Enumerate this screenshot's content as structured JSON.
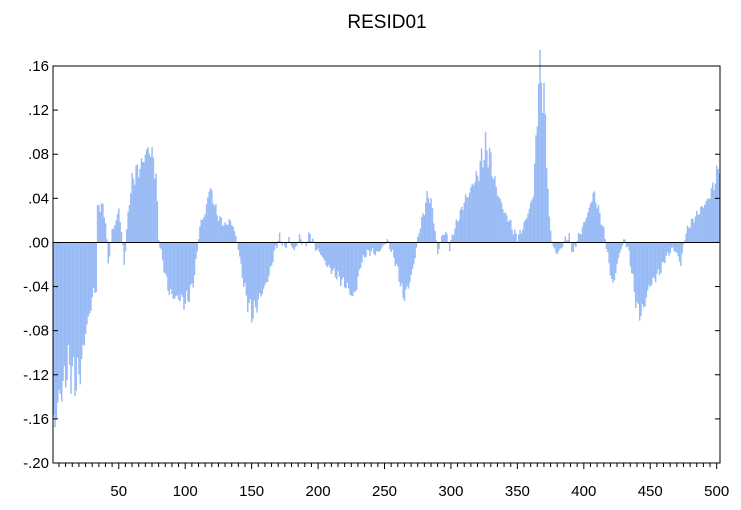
{
  "chart_data": {
    "type": "bar",
    "title": "RESID01",
    "xlabel": "",
    "ylabel": "",
    "xlim": [
      1,
      502
    ],
    "ylim": [
      -0.2,
      0.16
    ],
    "x_ticks": [
      50,
      100,
      150,
      200,
      250,
      300,
      350,
      400,
      450,
      500
    ],
    "y_ticks": [
      ".16",
      ".12",
      ".08",
      ".04",
      ".00",
      "-.04",
      "-.08",
      "-.12",
      "-.16",
      "-.20"
    ],
    "y_tick_values": [
      0.16,
      0.12,
      0.08,
      0.04,
      0.0,
      -0.04,
      -0.08,
      -0.12,
      -0.16,
      -0.2
    ],
    "grid": false,
    "bar_color": "#99BBF5",
    "zero_line_color": "#000000",
    "anchors": [
      [
        1,
        -0.165
      ],
      [
        3,
        -0.155
      ],
      [
        5,
        -0.14
      ],
      [
        8,
        -0.13
      ],
      [
        10,
        -0.12
      ],
      [
        12,
        -0.11
      ],
      [
        15,
        -0.12
      ],
      [
        18,
        -0.125
      ],
      [
        20,
        -0.12
      ],
      [
        22,
        -0.11
      ],
      [
        25,
        -0.08
      ],
      [
        28,
        -0.065
      ],
      [
        30,
        -0.05
      ],
      [
        33,
        -0.04
      ],
      [
        34,
        0.03
      ],
      [
        37,
        0.035
      ],
      [
        40,
        0.02
      ],
      [
        42,
        -0.02
      ],
      [
        45,
        0.01
      ],
      [
        48,
        0.02
      ],
      [
        50,
        0.03
      ],
      [
        52,
        0.01
      ],
      [
        54,
        -0.02
      ],
      [
        56,
        0.01
      ],
      [
        58,
        0.04
      ],
      [
        61,
        0.06
      ],
      [
        64,
        0.065
      ],
      [
        67,
        0.07
      ],
      [
        70,
        0.08
      ],
      [
        73,
        0.085
      ],
      [
        76,
        0.075
      ],
      [
        78,
        0.06
      ],
      [
        80,
        0.005
      ],
      [
        82,
        -0.01
      ],
      [
        85,
        -0.03
      ],
      [
        88,
        -0.045
      ],
      [
        92,
        -0.05
      ],
      [
        96,
        -0.05
      ],
      [
        100,
        -0.055
      ],
      [
        104,
        -0.045
      ],
      [
        107,
        -0.03
      ],
      [
        110,
        0.005
      ],
      [
        112,
        0.02
      ],
      [
        115,
        0.025
      ],
      [
        118,
        0.05
      ],
      [
        121,
        0.04
      ],
      [
        124,
        0.025
      ],
      [
        127,
        0.02
      ],
      [
        130,
        0.015
      ],
      [
        133,
        0.02
      ],
      [
        136,
        0.015
      ],
      [
        140,
        -0.005
      ],
      [
        143,
        -0.03
      ],
      [
        146,
        -0.05
      ],
      [
        150,
        -0.065
      ],
      [
        153,
        -0.06
      ],
      [
        156,
        -0.05
      ],
      [
        160,
        -0.04
      ],
      [
        163,
        -0.03
      ],
      [
        165,
        -0.02
      ],
      [
        168,
        -0.005
      ],
      [
        171,
        0.005
      ],
      [
        175,
        -0.005
      ],
      [
        178,
        0.003
      ],
      [
        182,
        -0.008
      ],
      [
        186,
        0.005
      ],
      [
        190,
        -0.003
      ],
      [
        194,
        0.008
      ],
      [
        198,
        -0.005
      ],
      [
        202,
        -0.01
      ],
      [
        206,
        -0.02
      ],
      [
        210,
        -0.025
      ],
      [
        214,
        -0.03
      ],
      [
        218,
        -0.035
      ],
      [
        222,
        -0.04
      ],
      [
        226,
        -0.05
      ],
      [
        229,
        -0.04
      ],
      [
        232,
        -0.02
      ],
      [
        236,
        -0.01
      ],
      [
        240,
        -0.008
      ],
      [
        244,
        -0.01
      ],
      [
        248,
        -0.005
      ],
      [
        252,
        0.002
      ],
      [
        256,
        -0.01
      ],
      [
        260,
        -0.025
      ],
      [
        264,
        -0.05
      ],
      [
        268,
        -0.04
      ],
      [
        272,
        -0.02
      ],
      [
        276,
        0.01
      ],
      [
        280,
        0.03
      ],
      [
        283,
        0.045
      ],
      [
        286,
        0.03
      ],
      [
        290,
        -0.01
      ],
      [
        293,
        0.005
      ],
      [
        296,
        0.01
      ],
      [
        299,
        -0.005
      ],
      [
        302,
        0.01
      ],
      [
        305,
        0.02
      ],
      [
        308,
        0.03
      ],
      [
        311,
        0.04
      ],
      [
        314,
        0.045
      ],
      [
        317,
        0.055
      ],
      [
        320,
        0.06
      ],
      [
        323,
        0.075
      ],
      [
        326,
        0.085
      ],
      [
        329,
        0.08
      ],
      [
        332,
        0.06
      ],
      [
        335,
        0.045
      ],
      [
        338,
        0.035
      ],
      [
        341,
        0.025
      ],
      [
        344,
        0.02
      ],
      [
        347,
        0.01
      ],
      [
        350,
        0.005
      ],
      [
        353,
        0.01
      ],
      [
        356,
        0.02
      ],
      [
        359,
        0.03
      ],
      [
        362,
        0.045
      ],
      [
        364,
        0.09
      ],
      [
        366,
        0.15
      ],
      [
        368,
        0.15
      ],
      [
        370,
        0.13
      ],
      [
        372,
        0.08
      ],
      [
        374,
        0.02
      ],
      [
        377,
        -0.005
      ],
      [
        380,
        -0.01
      ],
      [
        383,
        -0.005
      ],
      [
        386,
        0.003
      ],
      [
        389,
        0.005
      ],
      [
        392,
        -0.01
      ],
      [
        395,
        0.003
      ],
      [
        398,
        0.01
      ],
      [
        401,
        0.02
      ],
      [
        404,
        0.03
      ],
      [
        407,
        0.045
      ],
      [
        410,
        0.035
      ],
      [
        413,
        0.02
      ],
      [
        416,
        0.005
      ],
      [
        419,
        -0.02
      ],
      [
        422,
        -0.04
      ],
      [
        425,
        -0.02
      ],
      [
        428,
        -0.005
      ],
      [
        431,
        0.003
      ],
      [
        434,
        -0.01
      ],
      [
        437,
        -0.035
      ],
      [
        440,
        -0.06
      ],
      [
        443,
        -0.065
      ],
      [
        446,
        -0.055
      ],
      [
        449,
        -0.04
      ],
      [
        452,
        -0.035
      ],
      [
        455,
        -0.03
      ],
      [
        458,
        -0.025
      ],
      [
        461,
        -0.015
      ],
      [
        464,
        -0.01
      ],
      [
        467,
        -0.005
      ],
      [
        470,
        -0.01
      ],
      [
        473,
        -0.02
      ],
      [
        476,
        0.005
      ],
      [
        479,
        0.015
      ],
      [
        482,
        0.02
      ],
      [
        485,
        0.025
      ],
      [
        488,
        0.03
      ],
      [
        491,
        0.035
      ],
      [
        494,
        0.04
      ],
      [
        497,
        0.05
      ],
      [
        500,
        0.06
      ],
      [
        502,
        0.075
      ]
    ]
  }
}
